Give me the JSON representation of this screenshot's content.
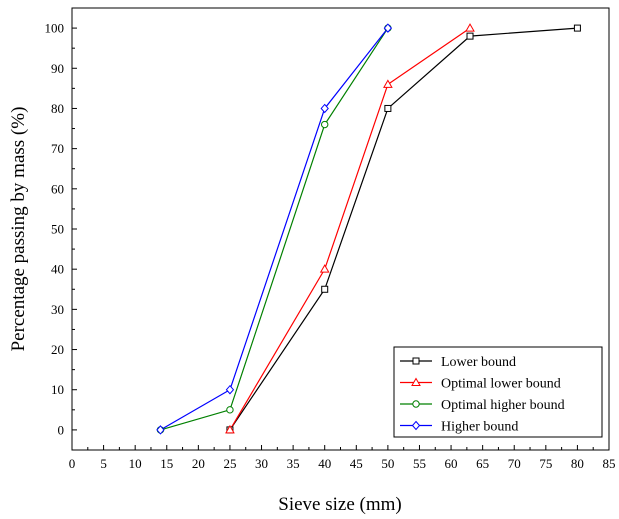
{
  "chart_data": {
    "type": "line",
    "xlabel": "Sieve size (mm)",
    "ylabel": "Percentage passing by mass (%)",
    "xlim": [
      0,
      85
    ],
    "ylim": [
      -5,
      105
    ],
    "xticks": [
      0,
      5,
      10,
      15,
      20,
      25,
      30,
      35,
      40,
      45,
      50,
      55,
      60,
      65,
      70,
      75,
      80,
      85
    ],
    "yticks": [
      0,
      10,
      20,
      30,
      40,
      50,
      60,
      70,
      80,
      90,
      100
    ],
    "grid": false,
    "legend_position": "bottom-right",
    "series": [
      {
        "name": "Lower bound",
        "color": "#000000",
        "marker": "square",
        "x": [
          25,
          40,
          50,
          63,
          80
        ],
        "y": [
          0,
          35,
          80,
          98,
          100
        ]
      },
      {
        "name": "Optimal lower bound",
        "color": "#ff0000",
        "marker": "triangle",
        "x": [
          25,
          40,
          50,
          63
        ],
        "y": [
          0,
          40,
          86,
          100
        ]
      },
      {
        "name": "Optimal higher bound",
        "color": "#008000",
        "marker": "circle",
        "x": [
          14,
          25,
          40,
          50
        ],
        "y": [
          0,
          5,
          76,
          100
        ]
      },
      {
        "name": "Higher bound",
        "color": "#0000ff",
        "marker": "diamond",
        "x": [
          14,
          25,
          40,
          50
        ],
        "y": [
          0,
          10,
          80,
          100
        ]
      }
    ]
  }
}
